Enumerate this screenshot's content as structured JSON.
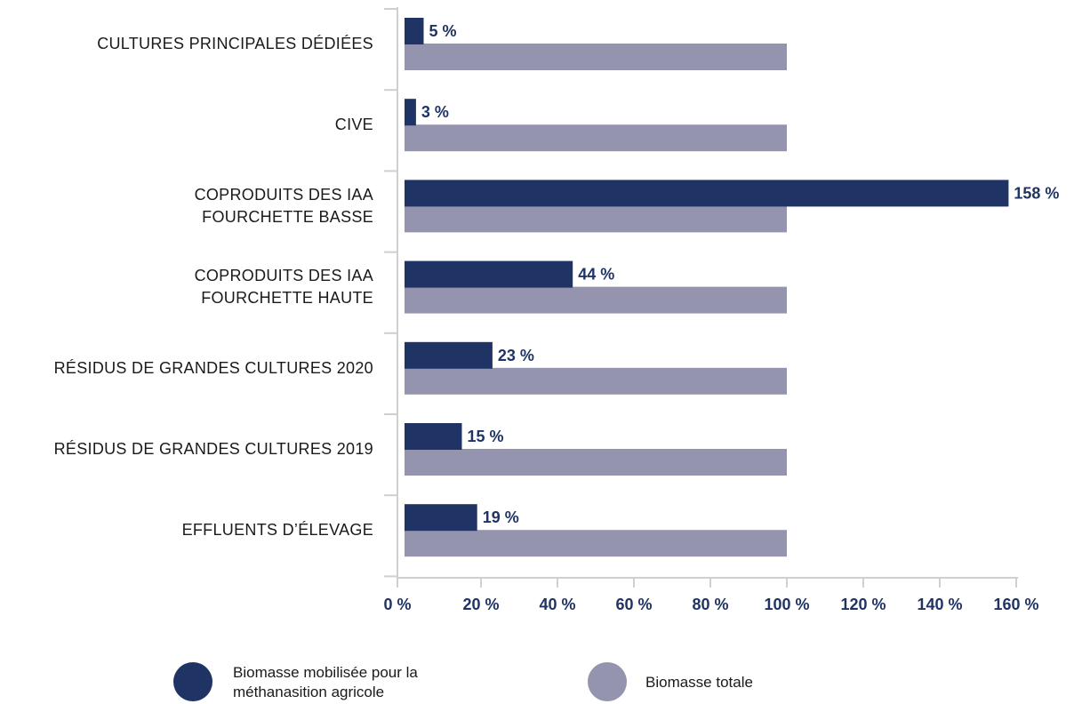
{
  "colors": {
    "mobilisee": "#1f3464",
    "totale": "#9594ae",
    "axis": "#cfcfcf",
    "tick_text": "#1f3464",
    "text": "#1a1a1a"
  },
  "chart_data": {
    "type": "bar",
    "orientation": "horizontal",
    "categories": [
      [
        "CULTURES PRINCIPALES DÉDIÉES"
      ],
      [
        "CIVE"
      ],
      [
        "COPRODUITS DES IAA",
        "FOURCHETTE BASSE"
      ],
      [
        "COPRODUITS DES IAA",
        "FOURCHETTE HAUTE"
      ],
      [
        "RÉSIDUS DE GRANDES CULTURES 2020"
      ],
      [
        "RÉSIDUS DE GRANDES CULTURES 2019"
      ],
      [
        "EFFLUENTS D’ÉLEVAGE"
      ]
    ],
    "series": [
      {
        "name": "Biomasse mobilisée pour la méthanasition agricole",
        "legend_lines": [
          "Biomasse mobilisée pour la",
          "méthanasition agricole"
        ],
        "values": [
          5,
          3,
          158,
          44,
          23,
          15,
          19
        ],
        "labels": [
          "5 %",
          "3 %",
          "158 %",
          "44 %",
          "23 %",
          "15 %",
          "19 %"
        ],
        "color": "#1f3464"
      },
      {
        "name": "Biomasse totale",
        "legend_lines": [
          "Biomasse totale"
        ],
        "values": [
          100,
          100,
          100,
          100,
          100,
          100,
          100
        ],
        "color": "#9594ae"
      }
    ],
    "xlim": [
      0,
      160
    ],
    "xticks": [
      0,
      20,
      40,
      60,
      80,
      100,
      120,
      140,
      160
    ],
    "xtick_labels": [
      "0 %",
      "20 %",
      "40 %",
      "60 %",
      "80 %",
      "100 %",
      "120 %",
      "140 %",
      "160 %"
    ],
    "grid": false,
    "legend_position": "bottom"
  }
}
